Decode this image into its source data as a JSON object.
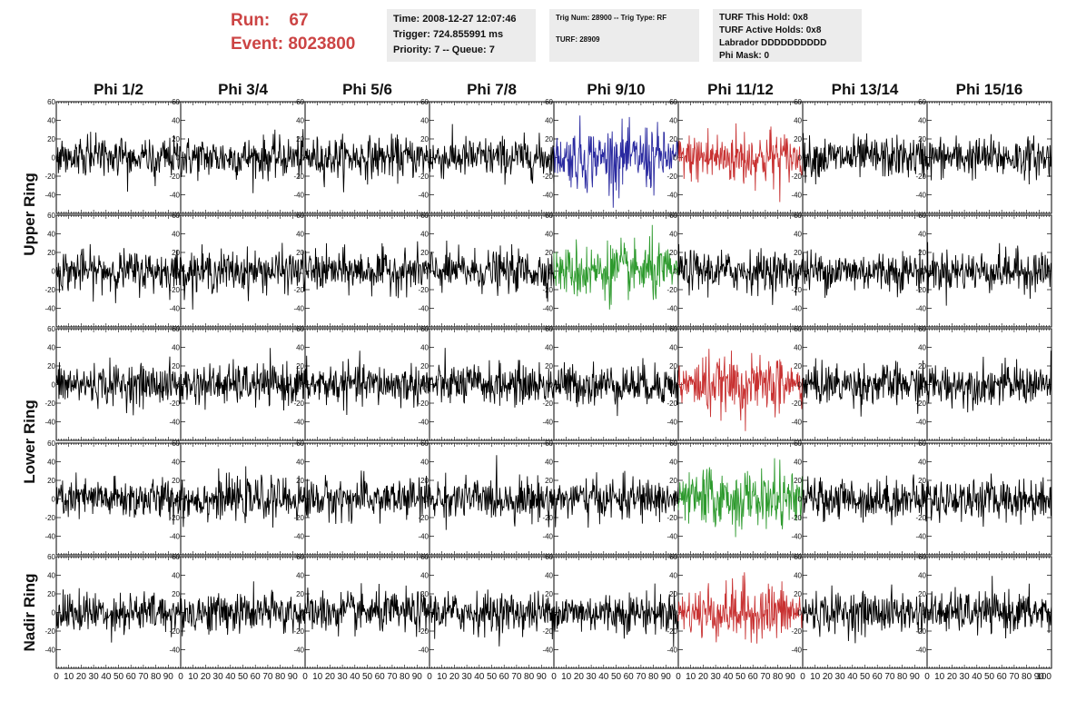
{
  "header": {
    "run_label": "Run:",
    "run_value": "67",
    "event_label": "Event:",
    "event_value": "8023800"
  },
  "info1": {
    "time": "Time: 2008-12-27 12:07:46",
    "trigger": "Trigger: 724.855991 ms",
    "priority": "Priority: 7 -- Queue: 7"
  },
  "info2": {
    "trig": "Trig Num: 28900 -- Trig Type: RF",
    "turf": "TURF: 28909"
  },
  "info3": {
    "hold": "TURF This Hold: 0x8",
    "active": "TURF Active Holds: 0x8",
    "labrador": "Labrador DDDDDDDDDD",
    "phimask": "Phi Mask: 0"
  },
  "chart_data": {
    "type": "line",
    "columns": [
      "Phi 1/2",
      "Phi 3/4",
      "Phi 5/6",
      "Phi 7/8",
      "Phi 9/10",
      "Phi 11/12",
      "Phi 13/14",
      "Phi 15/16"
    ],
    "ring_labels": [
      "Upper Ring",
      "Lower Ring",
      "Nadir Ring"
    ],
    "ring_rows": [
      [
        0,
        1
      ],
      [
        2,
        3
      ],
      [
        4
      ]
    ],
    "xlim": [
      0,
      100
    ],
    "ylim": [
      -60,
      60
    ],
    "yticks": [
      -40,
      -20,
      0,
      20,
      40,
      60
    ],
    "xticks": [
      0,
      10,
      20,
      30,
      40,
      50,
      60,
      70,
      80,
      90
    ],
    "last_xtick": "100",
    "samples_per_trace": 240,
    "default_color": "#000000",
    "highlight_colors": {
      "blue": "#2a2aa0",
      "red": "#c83232",
      "green": "#2e9a2e"
    },
    "highlights": [
      {
        "row": 0,
        "col": 4,
        "color": "blue",
        "amp": 1.6
      },
      {
        "row": 0,
        "col": 5,
        "color": "red",
        "amp": 1.5
      },
      {
        "row": 1,
        "col": 4,
        "color": "green",
        "amp": 1.5
      },
      {
        "row": 2,
        "col": 5,
        "color": "red",
        "amp": 1.5
      },
      {
        "row": 3,
        "col": 5,
        "color": "green",
        "amp": 1.5
      },
      {
        "row": 4,
        "col": 5,
        "color": "red",
        "amp": 1.5
      }
    ],
    "noise_rms": 11
  }
}
